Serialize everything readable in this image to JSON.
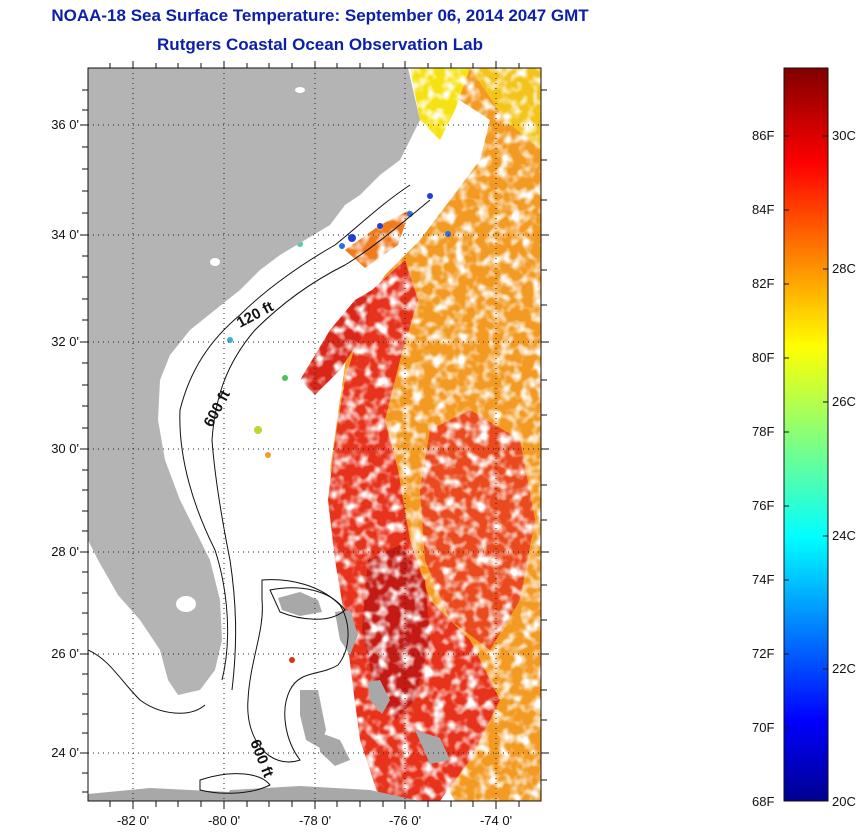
{
  "header": {
    "title_line1": "NOAA-18 Sea Surface Temperature:  September 06, 2014 2047 GMT",
    "title_line2": "Rutgers Coastal Ocean Observation Lab"
  },
  "map": {
    "lon_labels": [
      "-82 0'",
      "-80 0'",
      "-78 0'",
      "-76 0'",
      "-74 0'"
    ],
    "lat_labels": [
      "36 0'",
      "34 0'",
      "32 0'",
      "30 0'",
      "28 0'",
      "26 0'",
      "24 0'"
    ],
    "lon_range": [
      -83,
      -73
    ],
    "lat_range": [
      23,
      37.1
    ],
    "contour_labels": [
      "120 ft",
      "600 ft",
      "600 ft"
    ],
    "land_color": "#b4b4b4",
    "no_data_color": "#ffffff"
  },
  "colorbar": {
    "fahrenheit_labels": [
      "86F",
      "84F",
      "82F",
      "80F",
      "78F",
      "76F",
      "74F",
      "72F",
      "70F",
      "68F"
    ],
    "celsius_labels": [
      "30C",
      "28C",
      "26C",
      "24C",
      "22C",
      "20C"
    ],
    "range_f": [
      68,
      87.5
    ],
    "range_c": [
      20,
      30.8
    ],
    "colormap": "jet"
  }
}
